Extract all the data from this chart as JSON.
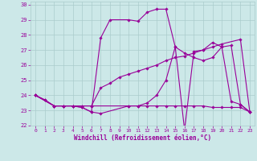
{
  "xlabel": "Windchill (Refroidissement éolien,°C)",
  "background_color": "#cce8e8",
  "grid_color": "#aacccc",
  "line_color": "#990099",
  "xlim": [
    -0.5,
    23.5
  ],
  "ylim": [
    22,
    30.2
  ],
  "xticks": [
    0,
    1,
    2,
    3,
    4,
    5,
    6,
    7,
    8,
    9,
    10,
    11,
    12,
    13,
    14,
    15,
    16,
    17,
    18,
    19,
    20,
    21,
    22,
    23
  ],
  "yticks": [
    22,
    23,
    24,
    25,
    26,
    27,
    28,
    29,
    30
  ],
  "line1_x": [
    0,
    1,
    2,
    3,
    4,
    5,
    6,
    7,
    8,
    10,
    11,
    12,
    13,
    14,
    15,
    16,
    17,
    18,
    19,
    20,
    21,
    22,
    23
  ],
  "line1_y": [
    24,
    23.7,
    23.3,
    23.3,
    23.3,
    23.2,
    22.9,
    27.8,
    29.0,
    29.0,
    28.9,
    29.5,
    29.7,
    29.7,
    27.2,
    21.7,
    26.9,
    27.0,
    27.5,
    27.2,
    23.6,
    23.4,
    22.9
  ],
  "line2_x": [
    0,
    1,
    2,
    3,
    4,
    5,
    6,
    7,
    10,
    11,
    12,
    13,
    14,
    15,
    16,
    17,
    18,
    19,
    20,
    21,
    22,
    23
  ],
  "line2_y": [
    24,
    23.7,
    23.3,
    23.3,
    23.3,
    23.2,
    22.9,
    22.8,
    23.3,
    23.3,
    23.3,
    23.3,
    23.3,
    23.3,
    23.3,
    23.3,
    23.3,
    23.2,
    23.2,
    23.2,
    23.2,
    22.9
  ],
  "line3_x": [
    0,
    2,
    3,
    4,
    5,
    6,
    7,
    8,
    9,
    10,
    11,
    12,
    13,
    14,
    15,
    16,
    17,
    18,
    19,
    20,
    22,
    23
  ],
  "line3_y": [
    24,
    23.3,
    23.3,
    23.3,
    23.3,
    23.3,
    24.5,
    24.8,
    25.2,
    25.4,
    25.6,
    25.8,
    26.0,
    26.3,
    26.5,
    26.6,
    26.8,
    27.0,
    27.2,
    27.4,
    27.7,
    22.9
  ],
  "line4_x": [
    0,
    2,
    3,
    4,
    5,
    6,
    10,
    11,
    12,
    13,
    14,
    15,
    16,
    17,
    18,
    19,
    20,
    21,
    22,
    23
  ],
  "line4_y": [
    24,
    23.3,
    23.3,
    23.3,
    23.3,
    23.3,
    23.3,
    23.3,
    23.5,
    24.0,
    25.0,
    27.2,
    26.8,
    26.5,
    26.3,
    26.5,
    27.2,
    27.3,
    23.4,
    22.9
  ]
}
